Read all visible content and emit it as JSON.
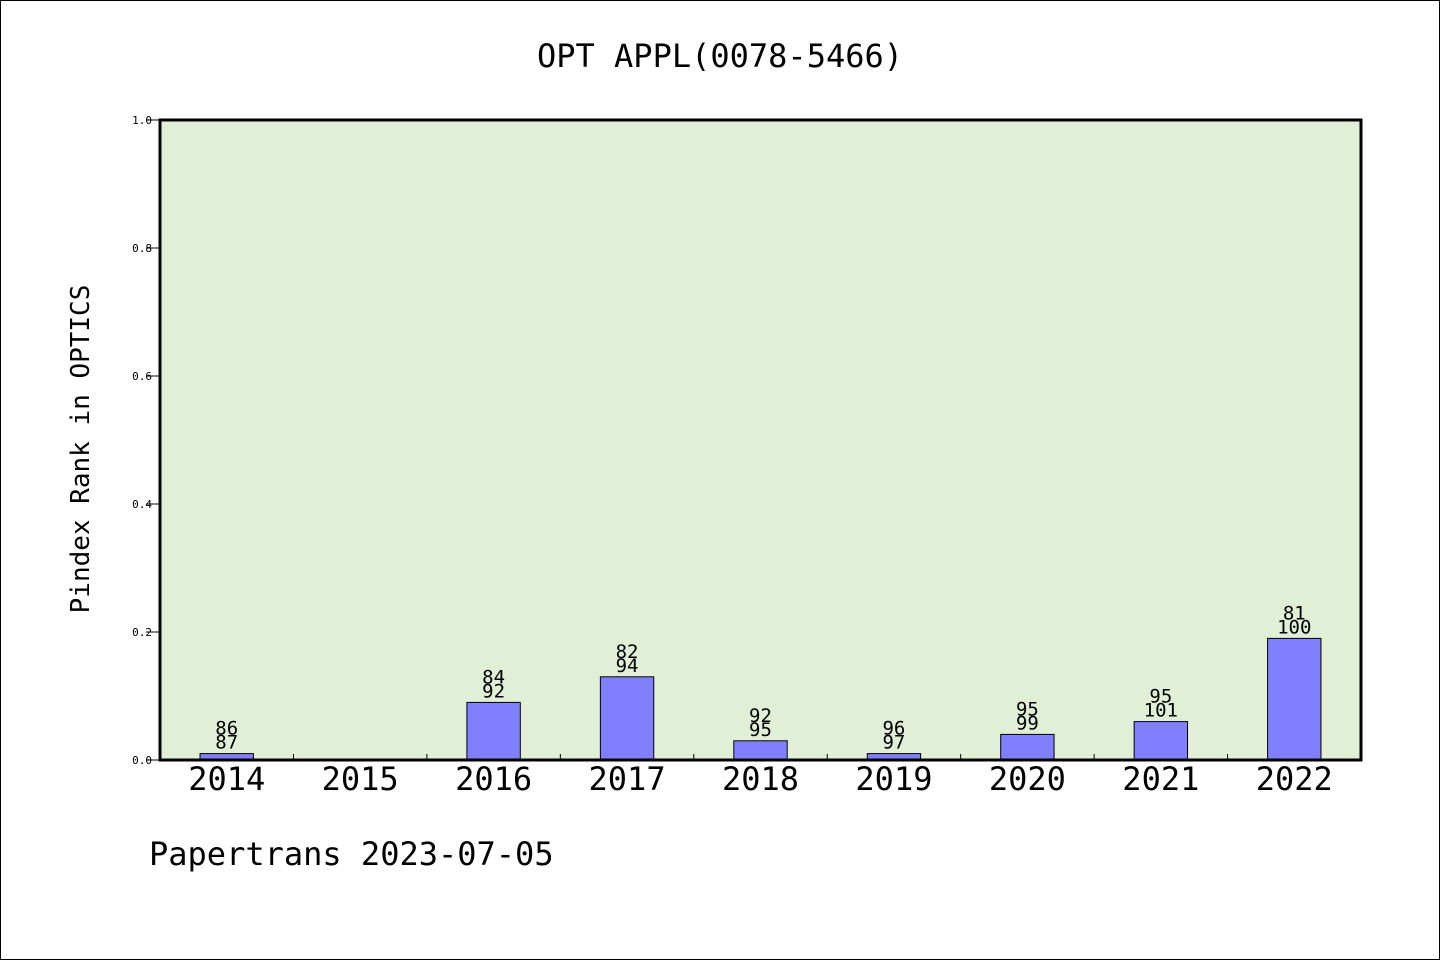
{
  "chart_data": {
    "type": "bar",
    "title": "OPT APPL(0078-5466)",
    "xlabel": "",
    "ylabel": "Pindex Rank in OPTICS",
    "categories": [
      "2014",
      "2015",
      "2016",
      "2017",
      "2018",
      "2019",
      "2020",
      "2021",
      "2022"
    ],
    "values": [
      0.01,
      0.0,
      0.09,
      0.13,
      0.03,
      0.01,
      0.04,
      0.06,
      0.19
    ],
    "bar_labels": [
      [
        "86",
        "87"
      ],
      [
        "",
        ""
      ],
      [
        "84",
        "92"
      ],
      [
        "82",
        "94"
      ],
      [
        "92",
        "95"
      ],
      [
        "96",
        "97"
      ],
      [
        "95",
        "99"
      ],
      [
        "95",
        "101"
      ],
      [
        "81",
        "100"
      ]
    ],
    "ylim": [
      0.0,
      1.0
    ],
    "yticks": [
      "0.0",
      "0.2",
      "0.4",
      "0.6",
      "0.8",
      "1.0"
    ],
    "grid": false,
    "colors": {
      "plot_background": "#e2efd7",
      "bar_fill": "#8080ff",
      "bar_stroke": "#000000"
    }
  },
  "footer": "Papertrans 2023-07-05"
}
